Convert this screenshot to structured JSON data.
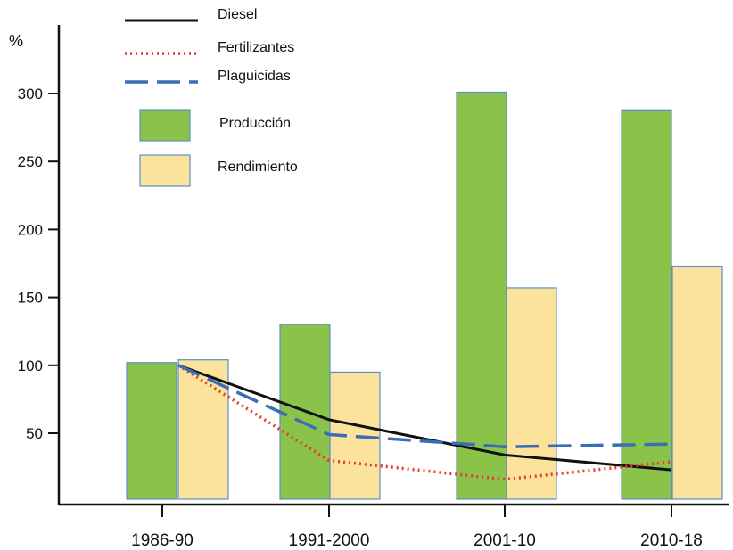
{
  "chart_data": {
    "type": "bar",
    "ylabel": "%",
    "categories": [
      "1986-90",
      "1991-2000",
      "2001-10",
      "2010-18"
    ],
    "yticks": [
      50,
      100,
      150,
      200,
      250,
      300
    ],
    "ylim": [
      0,
      320
    ],
    "grid": false,
    "legend_position": "top-left",
    "bar_series": [
      {
        "name": "Producción",
        "values": [
          102,
          130,
          301,
          288
        ],
        "color": "#8BC34A",
        "edge": "#5B8FC9"
      },
      {
        "name": "Rendimiento",
        "values": [
          104,
          95,
          157,
          173
        ],
        "color": "#FBE39C",
        "edge": "#5B8FC9"
      }
    ],
    "line_series": [
      {
        "name": "Diesel",
        "values": [
          100,
          60,
          34,
          23
        ],
        "color": "#111111",
        "style": "solid"
      },
      {
        "name": "Fertilizantes",
        "values": [
          100,
          30,
          16,
          29
        ],
        "color": "#E53935",
        "style": "dotted"
      },
      {
        "name": "Plaguicidas",
        "values": [
          100,
          49,
          40,
          42
        ],
        "color": "#3A6DB5",
        "style": "dashed"
      }
    ]
  }
}
